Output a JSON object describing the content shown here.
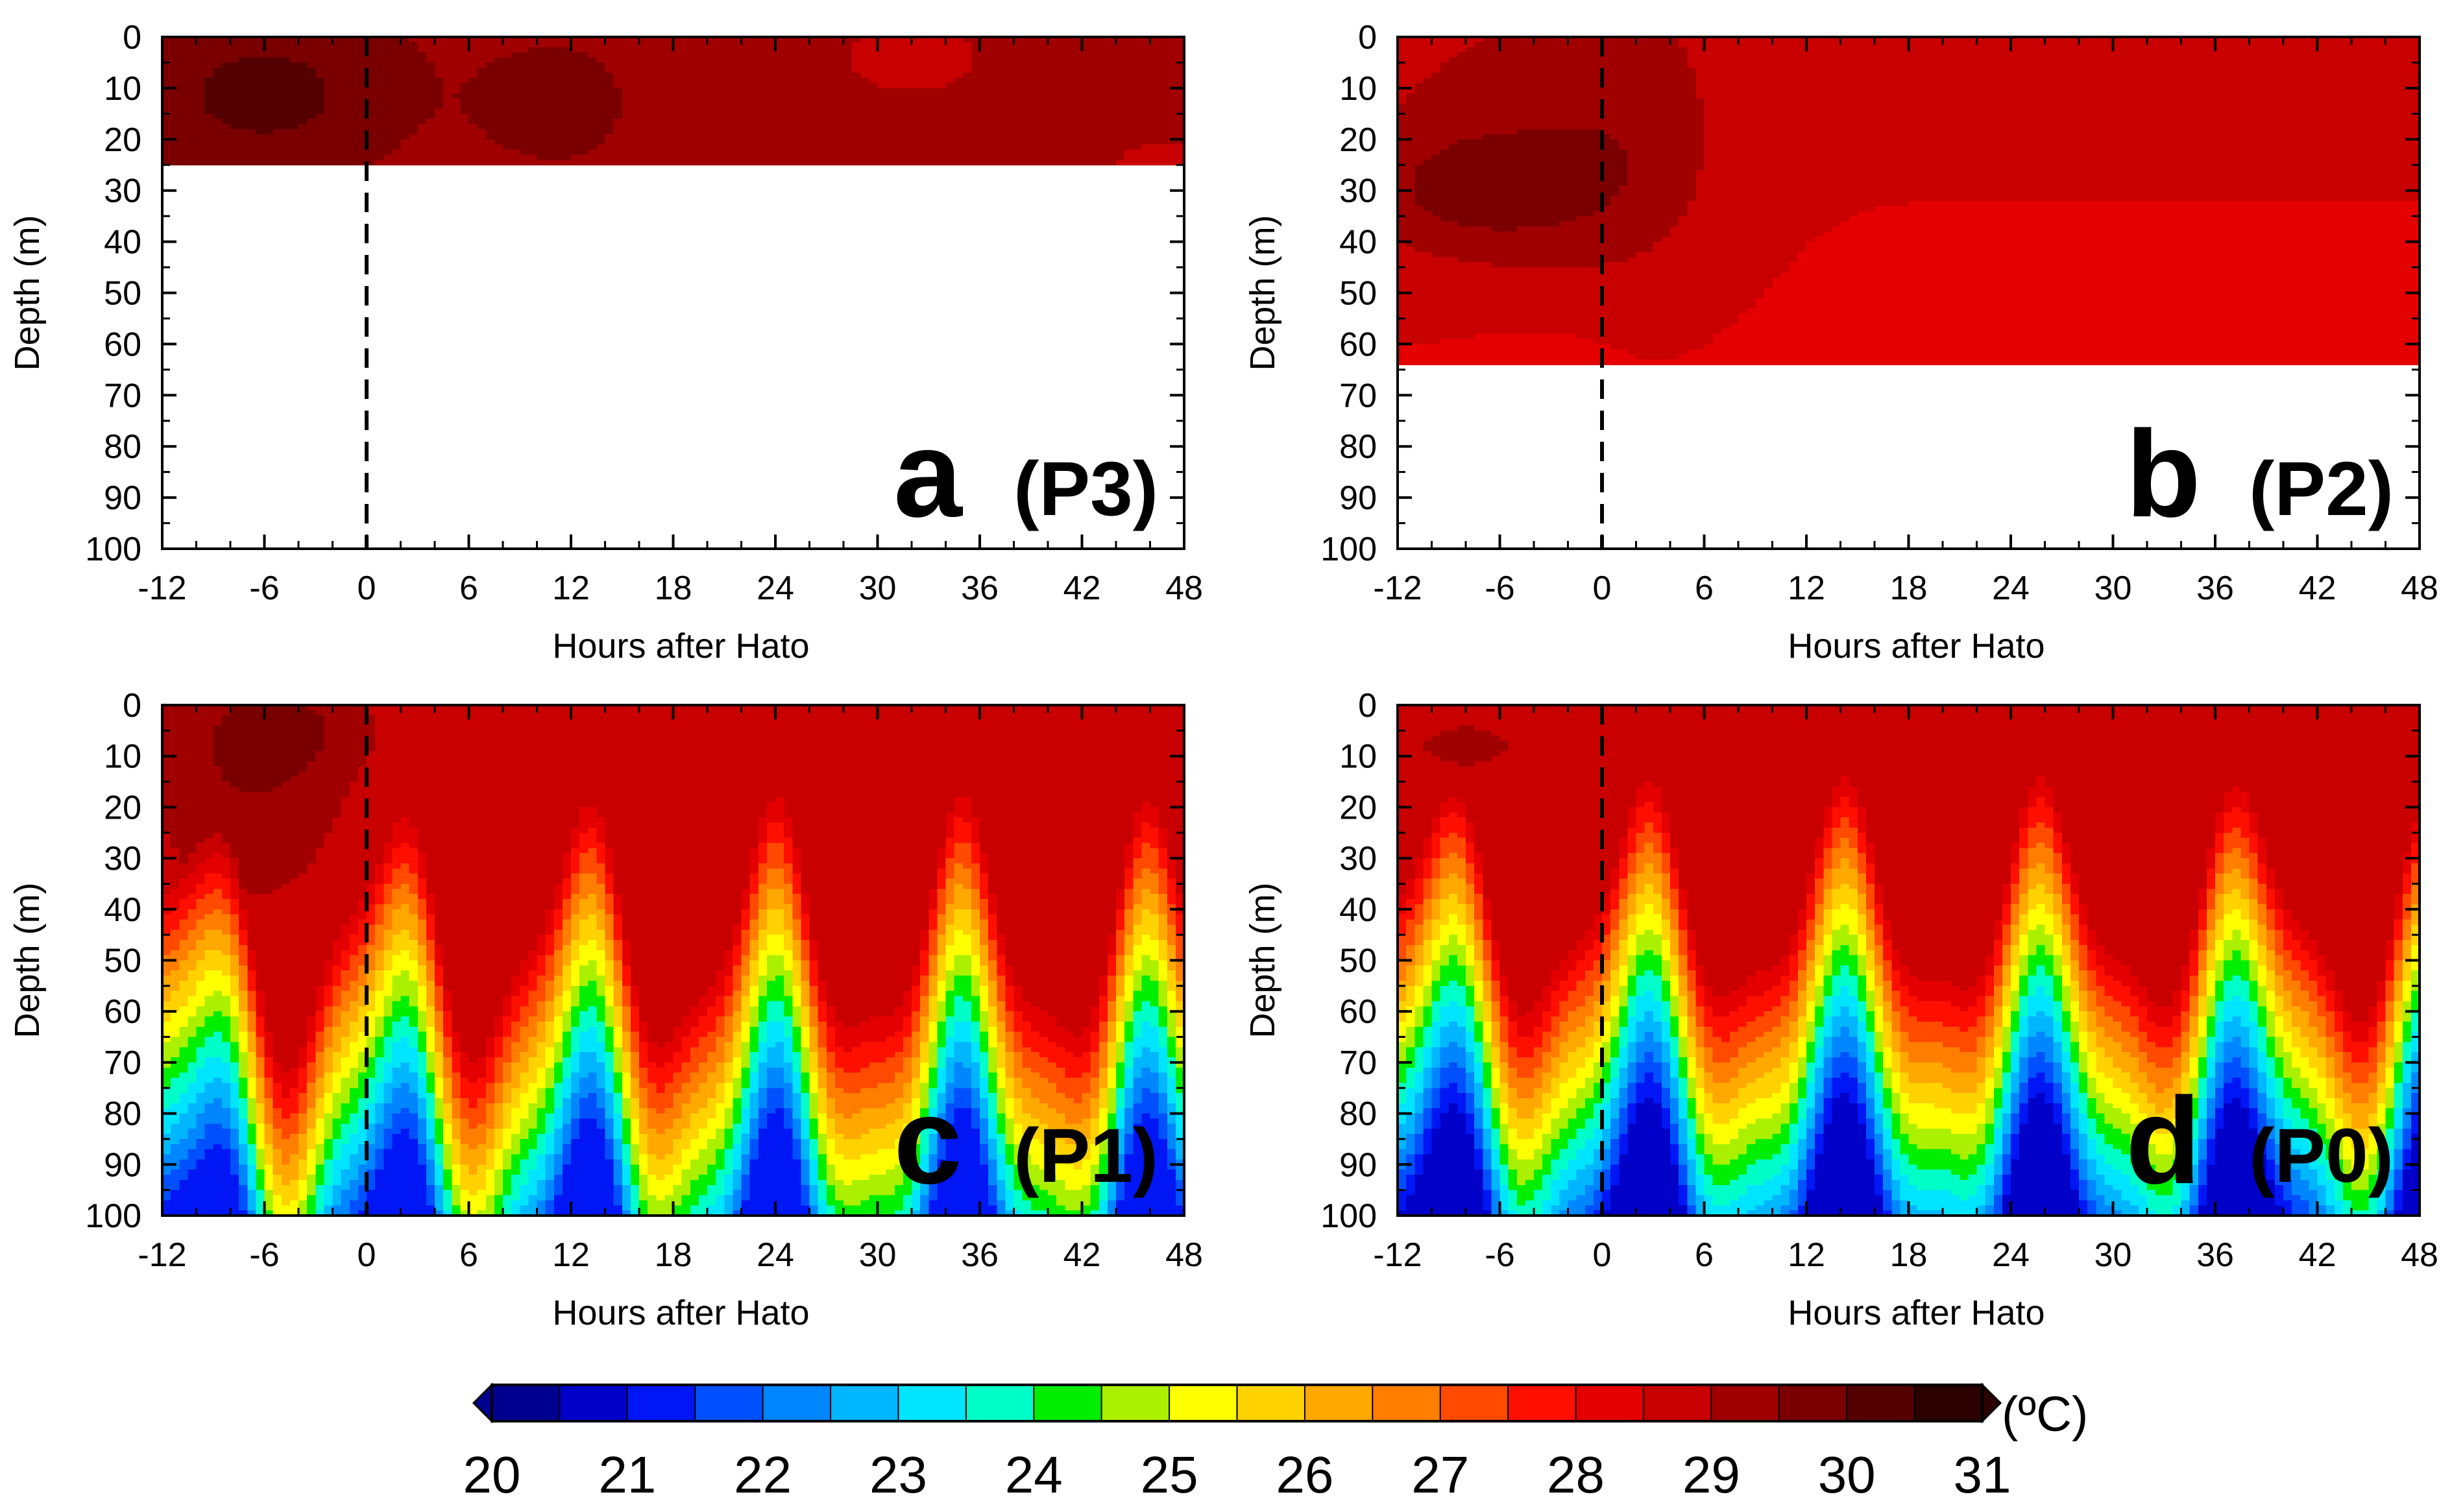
{
  "figure": {
    "xlabel": "Hours after Hato",
    "ylabel": "Depth (m)",
    "colorbar": {
      "unit": "(ºC)",
      "min": 20,
      "max": 31,
      "step": 0.5,
      "tick_labels": [
        "20",
        "21",
        "22",
        "23",
        "24",
        "25",
        "26",
        "27",
        "28",
        "29",
        "30",
        "31"
      ],
      "colors": [
        "#00008f",
        "#0000c8",
        "#0016f5",
        "#0050ff",
        "#0086ff",
        "#00b6ff",
        "#00e5ff",
        "#00ffc8",
        "#00ee00",
        "#aaf000",
        "#ffff00",
        "#ffd200",
        "#ffa800",
        "#ff7e00",
        "#ff4a00",
        "#ff0f00",
        "#e40000",
        "#c80000",
        "#a00000",
        "#7a0000",
        "#540000",
        "#2a0000"
      ]
    }
  },
  "chart_data": [
    {
      "type": "heatmap",
      "panel": "a",
      "site": "(P3)",
      "xlabel": "Hours after Hato",
      "ylabel": "Depth (m)",
      "xlim": [
        -12,
        48
      ],
      "ylim": [
        0,
        100
      ],
      "x_ticks": [
        "-12",
        "-6",
        "0",
        "6",
        "12",
        "18",
        "24",
        "30",
        "36",
        "42",
        "48"
      ],
      "y_ticks": [
        "0",
        "10",
        "20",
        "30",
        "40",
        "50",
        "60",
        "70",
        "80",
        "90",
        "100"
      ],
      "max_depth": 25,
      "event_hour": 0,
      "base_temp": 29.3,
      "surface_temp": 29.4,
      "surface_warm_depth": 0,
      "thermocline_amp": 0,
      "thermocline_period": 12.4,
      "thermocline_phase": 0,
      "thermocline_mean_depth": 200,
      "gradient": 0.0,
      "bottom_temp": 29.2,
      "hot_spots": [
        {
          "x": -6,
          "y": 12,
          "sx": 6,
          "sy": 12,
          "amp": 0.9
        },
        {
          "x": 11,
          "y": 14,
          "sx": 3,
          "sy": 8,
          "amp": 0.6
        },
        {
          "x": 32,
          "y": 4,
          "sx": 3,
          "sy": 5,
          "amp": -0.6
        },
        {
          "x": 47,
          "y": 25,
          "sx": 2,
          "sy": 3,
          "amp": -0.6
        }
      ]
    },
    {
      "type": "heatmap",
      "panel": "b",
      "site": "(P2)",
      "xlabel": "Hours after Hato",
      "ylabel": "Depth (m)",
      "xlim": [
        -12,
        48
      ],
      "ylim": [
        0,
        100
      ],
      "x_ticks": [
        "-12",
        "-6",
        "0",
        "6",
        "12",
        "18",
        "24",
        "30",
        "36",
        "42",
        "48"
      ],
      "y_ticks": [
        "0",
        "10",
        "20",
        "30",
        "40",
        "50",
        "60",
        "70",
        "80",
        "90",
        "100"
      ],
      "max_depth": 64,
      "event_hour": 0,
      "base_temp": 28.6,
      "surface_temp": 28.6,
      "surface_warm_depth": 0,
      "thermocline_amp": 0,
      "thermocline_period": 12.4,
      "thermocline_phase": 0,
      "thermocline_mean_depth": 200,
      "gradient": 0.0,
      "bottom_temp": 28.4,
      "hot_spots": [
        {
          "x": -6,
          "y": 22,
          "sx": 7,
          "sy": 22,
          "amp": 0.6
        },
        {
          "x": -7,
          "y": 30,
          "sx": 5,
          "sy": 8,
          "amp": 0.8
        },
        {
          "x": 2,
          "y": 20,
          "sx": 4,
          "sy": 22,
          "amp": 0.5
        },
        {
          "x": -4,
          "y": 62,
          "sx": 3,
          "sy": 3,
          "amp": -0.3
        }
      ]
    },
    {
      "type": "heatmap",
      "panel": "c",
      "site": "(P1)",
      "xlabel": "Hours after Hato",
      "ylabel": "Depth (m)",
      "xlim": [
        -12,
        48
      ],
      "ylim": [
        0,
        100
      ],
      "x_ticks": [
        "-12",
        "-6",
        "0",
        "6",
        "12",
        "18",
        "24",
        "30",
        "36",
        "42",
        "48"
      ],
      "y_ticks": [
        "0",
        "10",
        "20",
        "30",
        "40",
        "50",
        "60",
        "70",
        "80",
        "90",
        "100"
      ],
      "max_depth": 100,
      "event_hour": 0,
      "base_temp": 28.7,
      "surface_temp": 28.7,
      "surface_warm_depth": 0,
      "thermocline_amp": 22,
      "thermocline_period": 11.2,
      "thermocline_phase": -7,
      "thermocline_mean_depth": 62,
      "gradient": 0.085,
      "bottom_temp": 21.0,
      "hot_spots": [
        {
          "x": -7,
          "y": 12,
          "sx": 4,
          "sy": 18,
          "amp": 0.8
        },
        {
          "x": -4,
          "y": 5,
          "sx": 3,
          "sy": 6,
          "amp": 0.5
        }
      ]
    },
    {
      "type": "heatmap",
      "panel": "d",
      "site": "(P0)",
      "xlabel": "Hours after Hato",
      "ylabel": "Depth (m)",
      "xlim": [
        -12,
        48
      ],
      "ylim": [
        0,
        100
      ],
      "x_ticks": [
        "-12",
        "-6",
        "0",
        "6",
        "12",
        "18",
        "24",
        "30",
        "36",
        "42",
        "48"
      ],
      "y_ticks": [
        "0",
        "10",
        "20",
        "30",
        "40",
        "50",
        "60",
        "70",
        "80",
        "90",
        "100"
      ],
      "max_depth": 100,
      "event_hour": 0,
      "base_temp": 28.5,
      "surface_temp": 28.6,
      "surface_warm_depth": 0,
      "thermocline_amp": 20,
      "thermocline_period": 11.8,
      "thermocline_phase": -6.5,
      "thermocline_mean_depth": 58,
      "gradient": 0.09,
      "bottom_temp": 20.6,
      "hot_spots": [
        {
          "x": -8,
          "y": 8,
          "sx": 4,
          "sy": 6,
          "amp": 0.6
        }
      ]
    }
  ]
}
